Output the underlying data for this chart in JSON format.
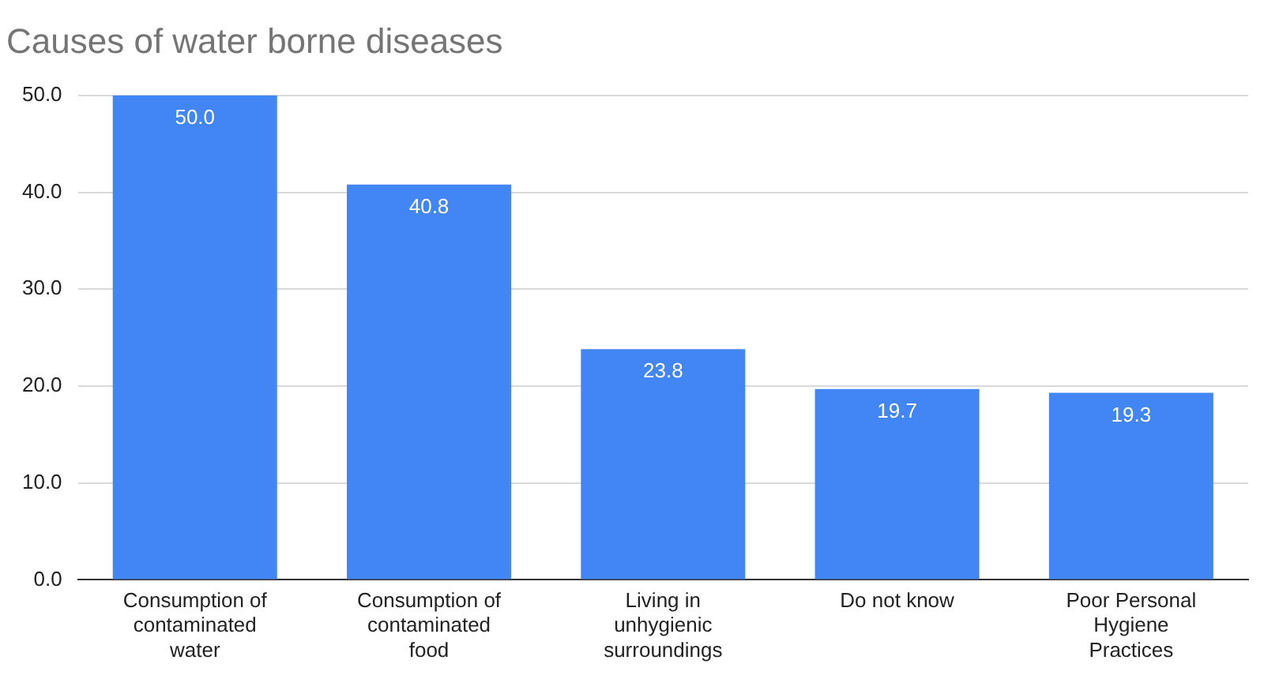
{
  "chart_data": {
    "type": "bar",
    "title": "Causes of water borne diseases",
    "categories": [
      "Consumption of contaminated water",
      "Consumption of contaminated food",
      "Living in unhygienic surroundings",
      "Do not know",
      "Poor Personal Hygiene Practices"
    ],
    "values": [
      50.0,
      40.8,
      23.8,
      19.7,
      19.3
    ],
    "color": "#4285f4",
    "ylim": [
      0,
      50
    ],
    "yticks": [
      {
        "value": 0,
        "label": "0.0"
      },
      {
        "value": 10,
        "label": "10.0"
      },
      {
        "value": 20,
        "label": "20.0"
      },
      {
        "value": 30,
        "label": "30.0"
      },
      {
        "value": 40,
        "label": "40.0"
      },
      {
        "value": 50,
        "label": "50.0"
      }
    ],
    "value_labels": [
      "50.0",
      "40.8",
      "23.8",
      "19.7",
      "19.3"
    ],
    "grid": "y",
    "legend": false
  }
}
